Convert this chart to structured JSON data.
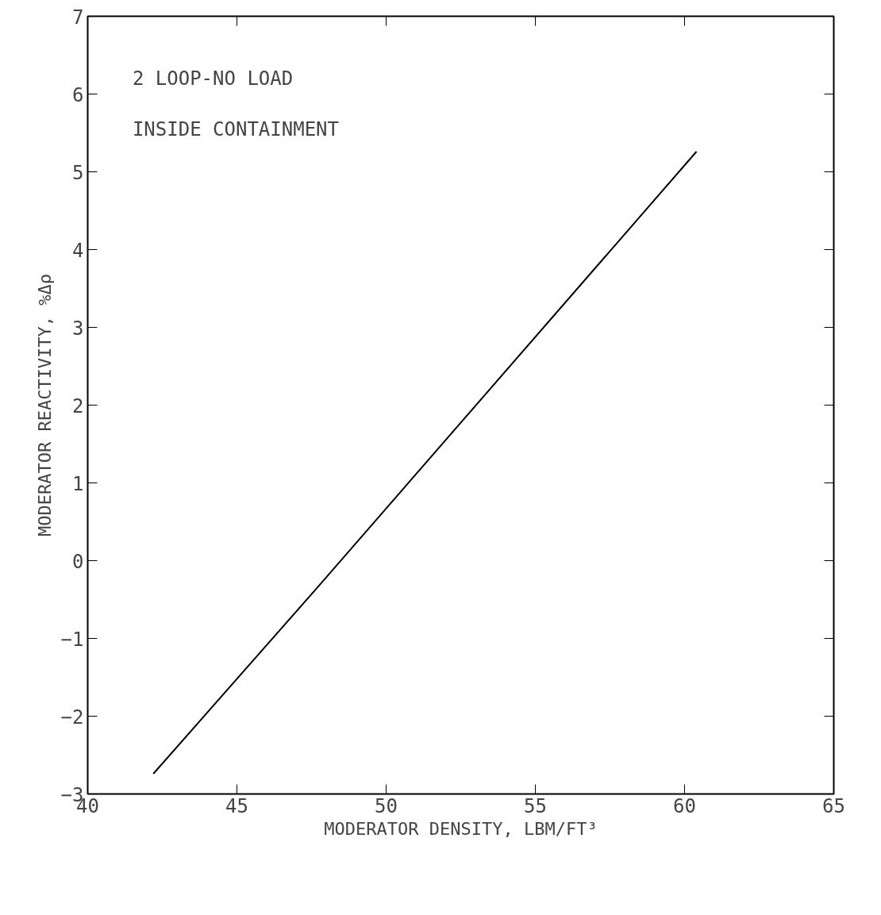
{
  "chart_data": {
    "type": "line",
    "xlabel": "MODERATOR DENSITY, LBM/FT³",
    "ylabel": "MODERATOR REACTIVITY, %Δρ",
    "annotations": [
      "2 LOOP-NO LOAD",
      "INSIDE CONTAINMENT"
    ],
    "x": [
      42.2,
      47.8,
      60.4
    ],
    "series": [
      {
        "color": "#000000",
        "values": [
          -2.74,
          -0.3,
          5.26
        ]
      }
    ],
    "xlim": [
      40,
      65
    ],
    "xticks": [
      40,
      45,
      50,
      55,
      60,
      65
    ],
    "ylim": [
      -3,
      7
    ],
    "yticks": [
      -3,
      -2,
      -1,
      0,
      1,
      2,
      3,
      4,
      5,
      6,
      7
    ],
    "grid": false,
    "marker": "none",
    "line_style": "solid"
  }
}
